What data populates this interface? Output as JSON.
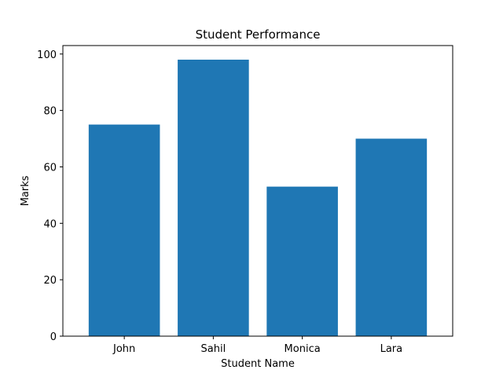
{
  "chart_data": {
    "type": "bar",
    "title": "Student Performance",
    "xlabel": "Student Name",
    "ylabel": "Marks",
    "categories": [
      "John",
      "Sahil",
      "Monica",
      "Lara"
    ],
    "values": [
      75,
      98,
      53,
      70
    ],
    "ylim": [
      0,
      103
    ],
    "yticks": [
      0,
      20,
      40,
      60,
      80,
      100
    ],
    "grid": false,
    "bar_color": "#1f77b4"
  }
}
